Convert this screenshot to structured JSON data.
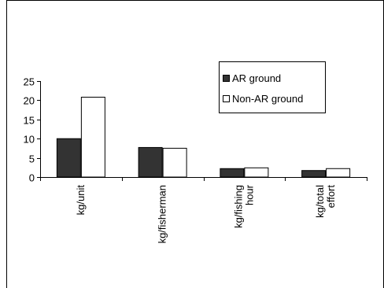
{
  "chart_data": {
    "type": "bar",
    "categories": [
      "kg/unit",
      "kg/fisherman",
      "kg/fishing hour",
      "kg/total effort"
    ],
    "category_lines": [
      [
        "kg/unit"
      ],
      [
        "kg/fisherman"
      ],
      [
        "kg/fishing",
        "hour"
      ],
      [
        "kg/total",
        "effort"
      ]
    ],
    "series": [
      {
        "name": "AR ground",
        "values": [
          10,
          7.7,
          2.2,
          1.7
        ],
        "color": "#333333"
      },
      {
        "name": "Non-AR ground",
        "values": [
          20.8,
          7.5,
          2.4,
          2.2
        ],
        "color": "#ffffff"
      }
    ],
    "title": "",
    "xlabel": "",
    "ylabel": "",
    "ylim": [
      0,
      25
    ],
    "yticks": [
      0,
      5,
      10,
      15,
      20,
      25
    ],
    "grid": false,
    "legend": "top-right"
  }
}
